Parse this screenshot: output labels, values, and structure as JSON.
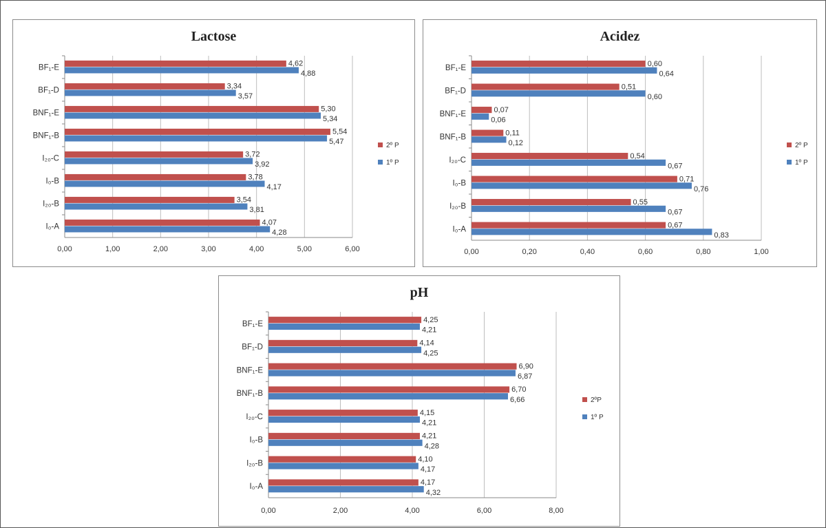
{
  "colors": {
    "series_2P": "#c0504d",
    "series_1P": "#4f81bd"
  },
  "chart_data": [
    {
      "type": "bar",
      "orientation": "horizontal",
      "title": "Lactose",
      "categories": [
        "BF₁-E",
        "BF₁-D",
        "BNF₁-E",
        "BNF₁-B",
        "I₂₀-C",
        "I₀-B",
        "I₂₀-B",
        "I₀-A"
      ],
      "series": [
        {
          "name": "2º P",
          "values": [
            4.62,
            3.34,
            5.3,
            5.54,
            3.72,
            3.78,
            3.54,
            4.07
          ],
          "labels": [
            "4,62",
            "3,34",
            "5,30",
            "5,54",
            "3,72",
            "3,78",
            "3,54",
            "4,07"
          ]
        },
        {
          "name": "1º P",
          "values": [
            4.88,
            3.57,
            5.34,
            5.47,
            3.92,
            4.17,
            3.81,
            4.28
          ],
          "labels": [
            "4,88",
            "3,57",
            "5,34",
            "5,47",
            "3,92",
            "4,17",
            "3,81",
            "4,28"
          ]
        }
      ],
      "xlim": [
        0,
        6
      ],
      "ticks": [
        "0,00",
        "1,00",
        "2,00",
        "3,00",
        "4,00",
        "5,00",
        "6,00"
      ],
      "grid": true,
      "legend": "right"
    },
    {
      "type": "bar",
      "orientation": "horizontal",
      "title": "Acidez",
      "categories": [
        "BF₁-E",
        "BF₁-D",
        "BNF₁-E",
        "BNF₁-B",
        "I₂₀-C",
        "I₀-B",
        "I₂₀-B",
        "I₀-A"
      ],
      "series": [
        {
          "name": "2º P",
          "values": [
            0.6,
            0.51,
            0.07,
            0.11,
            0.54,
            0.71,
            0.55,
            0.67
          ],
          "labels": [
            "0,60",
            "0,51",
            "0,07",
            "0,11",
            "0,54",
            "0,71",
            "0,55",
            "0,67"
          ]
        },
        {
          "name": "1º P",
          "values": [
            0.64,
            0.6,
            0.06,
            0.12,
            0.67,
            0.76,
            0.67,
            0.83
          ],
          "labels": [
            "0,64",
            "0,60",
            "0,06",
            "0,12",
            "0,67",
            "0,76",
            "0,67",
            "0,83"
          ]
        }
      ],
      "xlim": [
        0,
        1
      ],
      "ticks": [
        "0,00",
        "0,20",
        "0,40",
        "0,60",
        "0,80",
        "1,00"
      ],
      "grid": true,
      "legend": "right"
    },
    {
      "type": "bar",
      "orientation": "horizontal",
      "title": "pH",
      "categories": [
        "BF₁-E",
        "BF₁-D",
        "BNF₁-E",
        "BNF₁-B",
        "I₂₀-C",
        "I₀-B",
        "I₂₀-B",
        "I₀-A"
      ],
      "series": [
        {
          "name": "2ºP",
          "values": [
            4.25,
            4.14,
            6.9,
            6.7,
            4.15,
            4.21,
            4.1,
            4.17
          ],
          "labels": [
            "4,25",
            "4,14",
            "6,90",
            "6,70",
            "4,15",
            "4,21",
            "4,10",
            "4,17"
          ]
        },
        {
          "name": "1º P",
          "values": [
            4.21,
            4.25,
            6.87,
            6.66,
            4.21,
            4.28,
            4.17,
            4.32
          ],
          "labels": [
            "4,21",
            "4,25",
            "6,87",
            "6,66",
            "4,21",
            "4,28",
            "4,17",
            "4,32"
          ]
        }
      ],
      "xlim": [
        0,
        8
      ],
      "ticks": [
        "0,00",
        "2,00",
        "4,00",
        "6,00",
        "8,00"
      ],
      "grid": true,
      "legend": "right"
    }
  ]
}
